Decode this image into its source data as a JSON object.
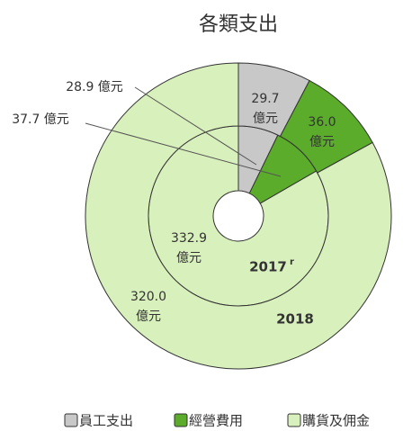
{
  "chart_data": {
    "type": "pie",
    "title": "各類支出",
    "categories": [
      "員工支出",
      "經營費用",
      "購貨及佣金"
    ],
    "colors": [
      "#c8c8c8",
      "#5aac2a",
      "#d8f0bc"
    ],
    "series": [
      {
        "name": "2017",
        "name_mark": "r",
        "values": [
          28.9,
          37.7,
          332.9
        ],
        "value_labels": [
          "28.9 億元",
          "37.7 億元",
          "332.9 億元"
        ]
      },
      {
        "name": "2018",
        "values": [
          29.7,
          36.0,
          320.0
        ],
        "value_labels": [
          "29.7 億元",
          "36.0 億元",
          "320.0 億元"
        ]
      }
    ]
  }
}
